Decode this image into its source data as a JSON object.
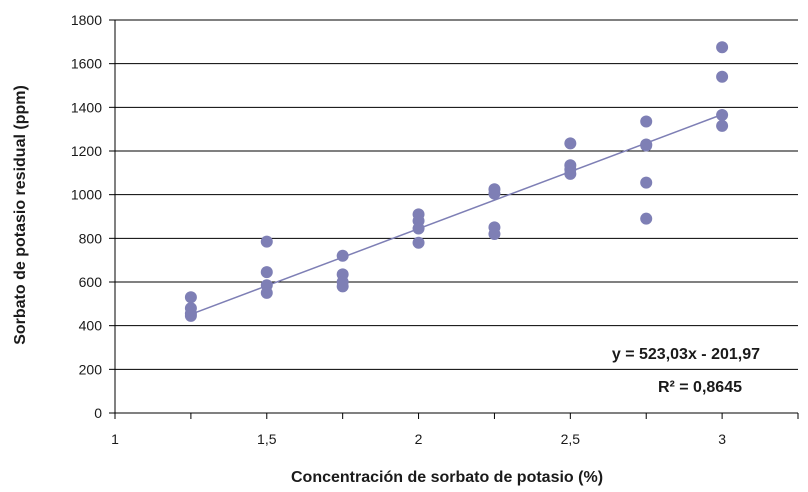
{
  "chart_data": {
    "type": "scatter",
    "xlabel": "Concentración de sorbato de potasio (%)",
    "ylabel": "Sorbato de potasio residual (ppm)",
    "xlim": [
      1,
      3.25
    ],
    "ylim": [
      0,
      1800
    ],
    "xticks": [
      1,
      1.5,
      2,
      2.5,
      3
    ],
    "xtick_labels": [
      "1",
      "1,5",
      "2",
      "2,5",
      "3"
    ],
    "yticks": [
      0,
      200,
      400,
      600,
      800,
      1000,
      1200,
      1400,
      1600,
      1800
    ],
    "ytick_labels": [
      "0",
      "200",
      "400",
      "600",
      "800",
      "1000",
      "1200",
      "1400",
      "1600",
      "1800"
    ],
    "grid": "horizontal",
    "series": [
      {
        "x": [
          1.25,
          1.25,
          1.25,
          1.25,
          1.5,
          1.5,
          1.5,
          1.5,
          1.75,
          1.75,
          1.75,
          1.75,
          2,
          2,
          2,
          2,
          2.25,
          2.25,
          2.25,
          2.25,
          2.5,
          2.5,
          2.5,
          2.5,
          2.75,
          2.75,
          2.75,
          2.75,
          2.75,
          3,
          3,
          3,
          3
        ],
        "y": [
          530,
          480,
          455,
          445,
          785,
          645,
          585,
          550,
          720,
          635,
          600,
          580,
          910,
          880,
          845,
          780,
          1025,
          1005,
          850,
          820,
          1235,
          1135,
          1115,
          1095,
          1335,
          1230,
          1225,
          1055,
          890,
          1675,
          1540,
          1365,
          1315
        ]
      }
    ],
    "trendline": {
      "slope": 523.03,
      "intercept": -201.97,
      "x_range": [
        1.25,
        3
      ],
      "equation": "y = 523,03x - 201,97",
      "r2": "R² = 0,8645"
    },
    "colors": {
      "marker": "#7e7fb5",
      "trendline": "#7e7fb5",
      "grid": "#000000"
    }
  }
}
